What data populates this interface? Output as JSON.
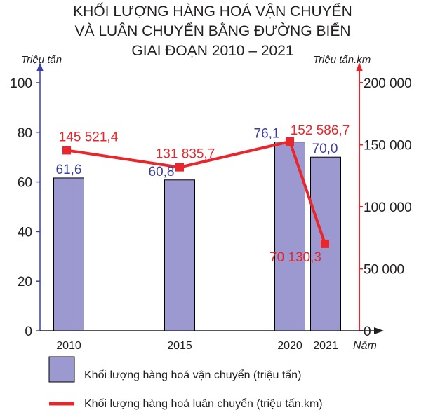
{
  "colors": {
    "bar_fill": "#9b99d0",
    "bar_stroke": "#000000",
    "line": "#e8262b",
    "left_axis": "#3d3fa0",
    "right_axis": "#e8262b",
    "bar_label": "#3d3fa0",
    "line_label": "#e8262b",
    "text": "#231f20"
  },
  "chart_data": {
    "type": "bar+line",
    "title_lines": [
      "KHỐI LƯỢNG HÀNG HOÁ VẬN CHUYỂN",
      "VÀ LUÂN CHUYỂN BẰNG ĐƯỜNG BIỂN",
      "GIAI ĐOẠN 2010 – 2021"
    ],
    "categories": [
      "2010",
      "2015",
      "2020",
      "2021"
    ],
    "xlabel": "Năm",
    "left_axis": {
      "label": "Triệu tấn",
      "ylim": [
        0,
        100
      ],
      "ticks": [
        "0",
        "20",
        "40",
        "60",
        "80",
        "100"
      ],
      "tick_values": [
        0,
        20,
        40,
        60,
        80,
        100
      ]
    },
    "right_axis": {
      "label": "Triệu tấn.km",
      "ylim": [
        0,
        200000
      ],
      "ticks": [
        "0",
        "50 000",
        "100 000",
        "150 000",
        "200 000"
      ],
      "tick_values": [
        0,
        50000,
        100000,
        150000,
        200000
      ]
    },
    "series": [
      {
        "name": "Khối lượng hàng hoá vận chuyển (triệu tấn)",
        "kind": "bar",
        "axis": "left",
        "values": [
          61.6,
          60.8,
          76.1,
          70.0
        ],
        "labels": [
          "61,6",
          "60,8",
          "76,1",
          "70,0"
        ]
      },
      {
        "name": "Khối lượng hàng hoá luân chuyển (triệu tấn.km)",
        "kind": "line",
        "axis": "right",
        "values": [
          145521.4,
          131835.7,
          152586.7,
          70130.3
        ],
        "labels": [
          "145 521,4",
          "131 835,7",
          "152 586,7",
          "70 130,3"
        ]
      }
    ],
    "legend": [
      "Khối lượng hàng hoá vận chuyển (triệu tấn)",
      "Khối lượng hàng hoá luân chuyển (triệu tấn.km)"
    ],
    "grid": false,
    "legend_position": "bottom"
  }
}
